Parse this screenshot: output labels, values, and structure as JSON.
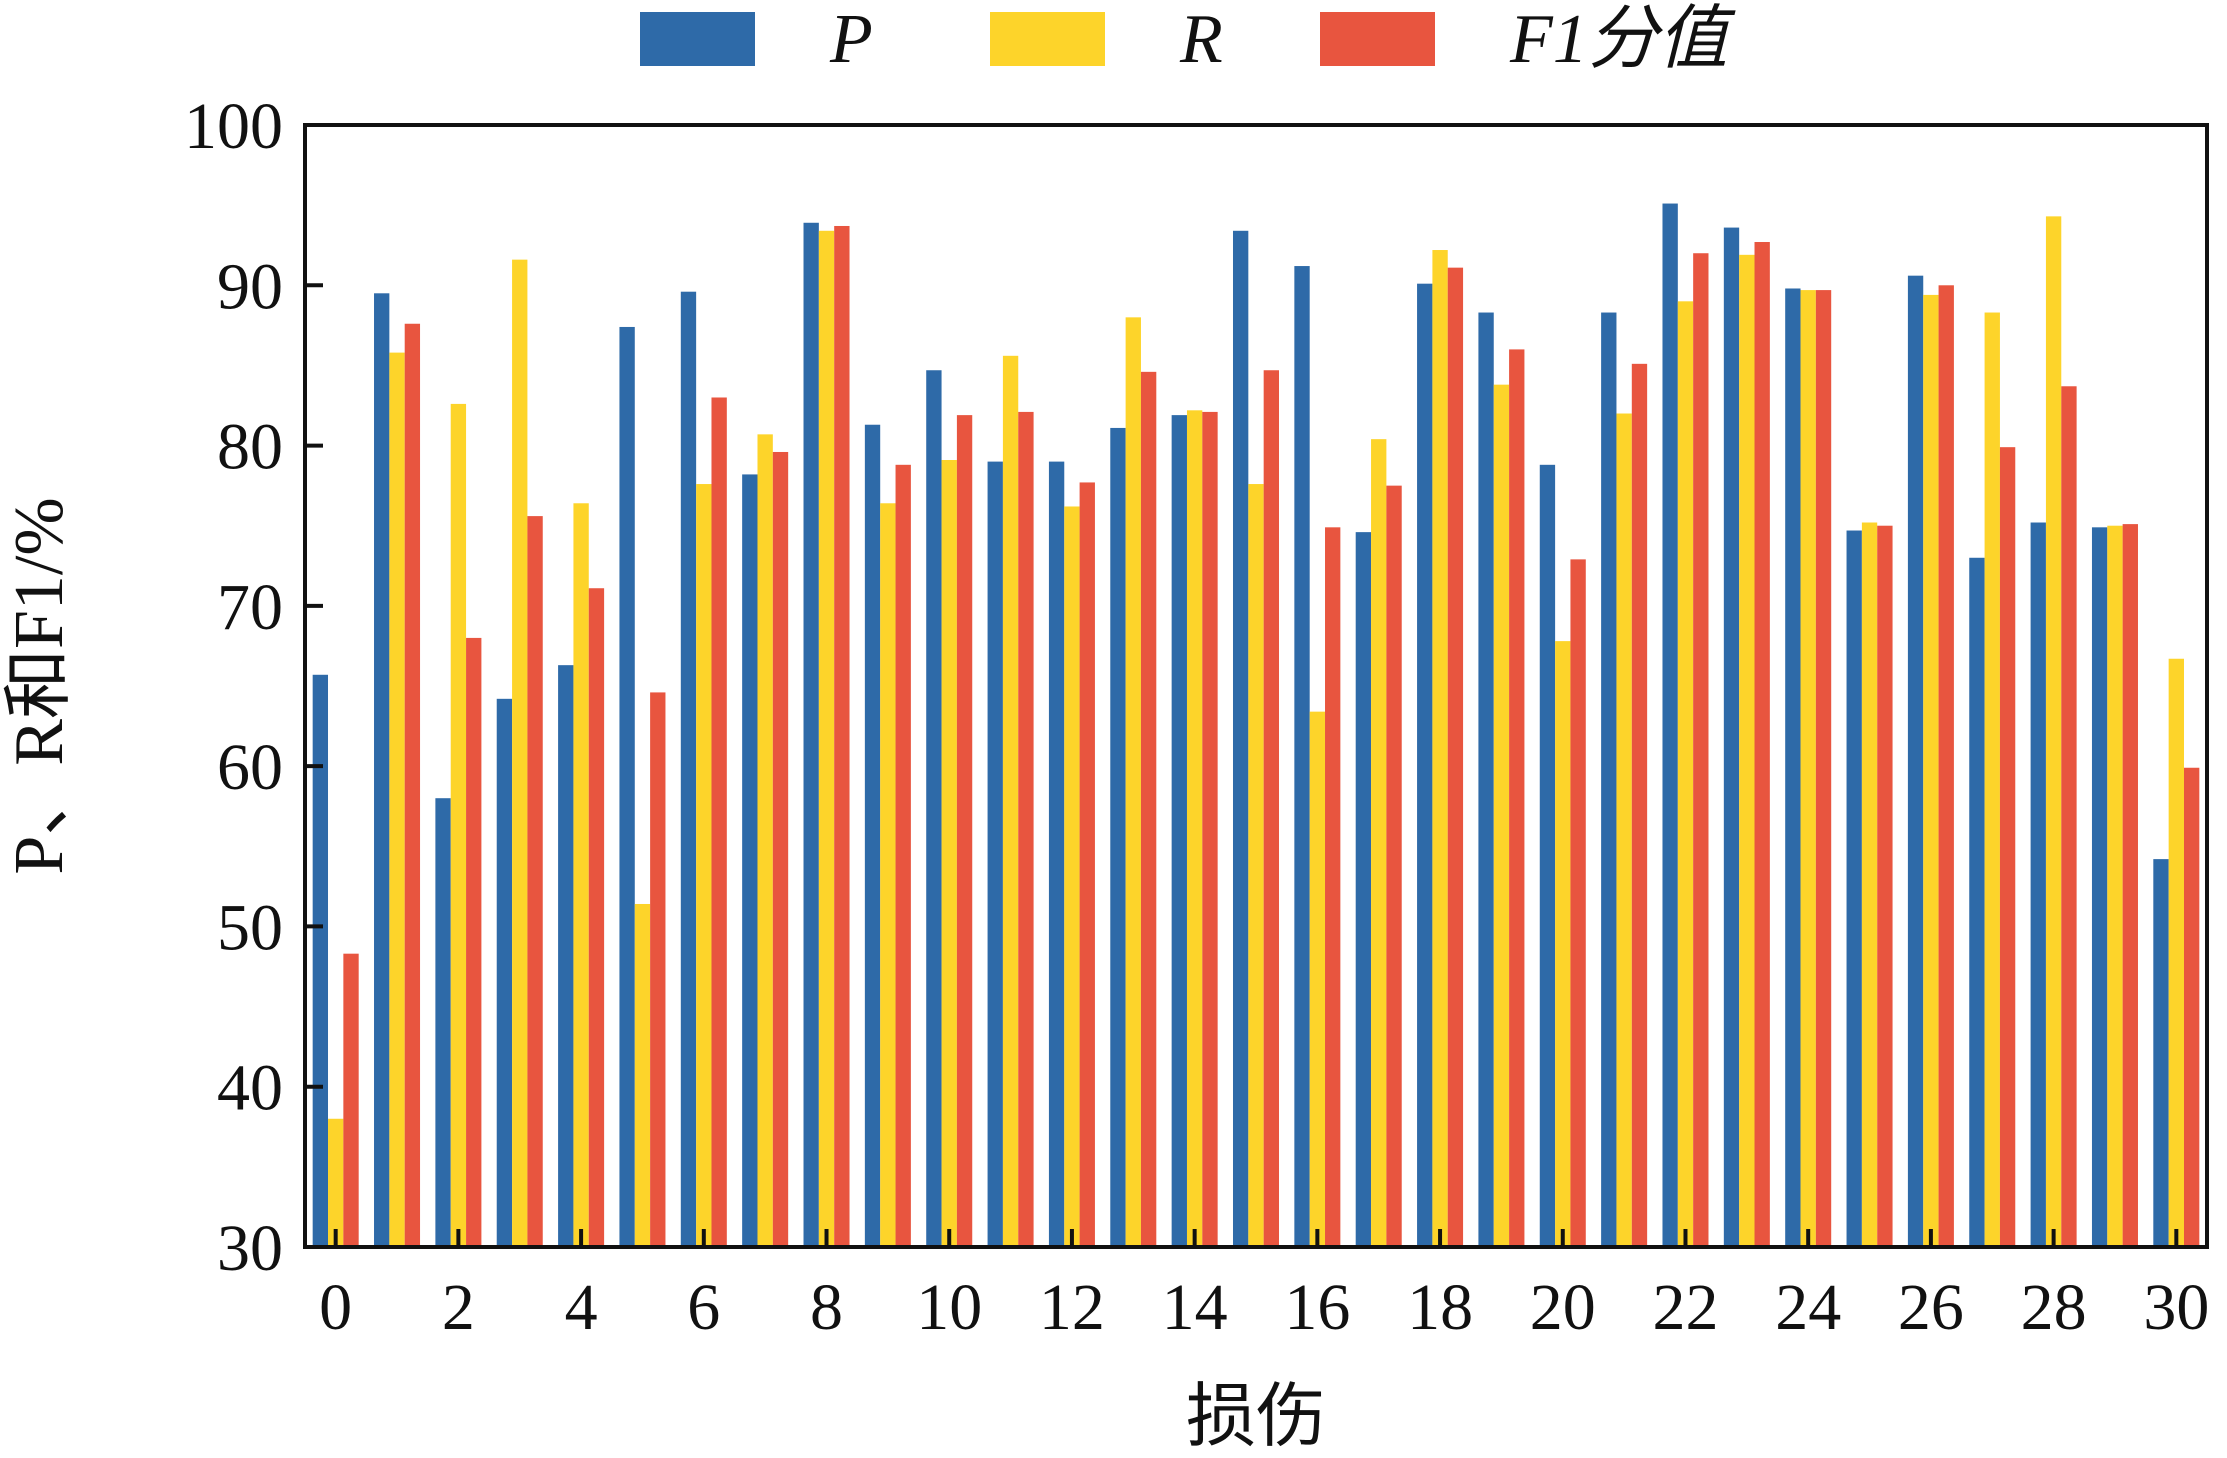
{
  "chart_data": {
    "type": "bar",
    "title": "",
    "xlabel": "损伤",
    "ylabel": "P、R和F1/%",
    "ylim": [
      30,
      100
    ],
    "yticks": [
      30,
      40,
      50,
      60,
      70,
      80,
      90,
      100
    ],
    "xlim": [
      0,
      30
    ],
    "xticks": [
      0,
      2,
      4,
      6,
      8,
      10,
      12,
      14,
      16,
      18,
      20,
      22,
      24,
      26,
      28,
      30
    ],
    "legend_position": "top",
    "grid": false,
    "categories": [
      0,
      1,
      2,
      3,
      4,
      5,
      6,
      7,
      8,
      9,
      10,
      11,
      12,
      13,
      14,
      15,
      16,
      17,
      18,
      19,
      20,
      21,
      22,
      23,
      24,
      25,
      26,
      27,
      28,
      29,
      30
    ],
    "series": [
      {
        "name": "P",
        "color": "#2e6aa8",
        "values": [
          65.7,
          89.5,
          58.0,
          64.2,
          66.3,
          87.4,
          89.6,
          78.2,
          93.9,
          81.3,
          84.7,
          79.0,
          79.0,
          81.1,
          81.9,
          93.4,
          91.2,
          74.6,
          90.1,
          88.3,
          78.8,
          88.3,
          95.1,
          93.6,
          89.8,
          74.7,
          90.6,
          73.0,
          75.2,
          74.9,
          54.2
        ]
      },
      {
        "name": "R",
        "color": "#fdd42a",
        "values": [
          38.0,
          85.8,
          82.6,
          91.6,
          76.4,
          51.4,
          77.6,
          80.7,
          93.4,
          76.4,
          79.1,
          85.6,
          76.2,
          88.0,
          82.2,
          77.6,
          63.4,
          80.4,
          92.2,
          83.8,
          67.8,
          82.0,
          89.0,
          91.9,
          89.7,
          75.2,
          89.4,
          88.3,
          94.3,
          75.0,
          66.7
        ]
      },
      {
        "name": "F1分值",
        "color": "#e8553f",
        "values": [
          48.3,
          87.6,
          68.0,
          75.6,
          71.1,
          64.6,
          83.0,
          79.6,
          93.7,
          78.8,
          81.9,
          82.1,
          77.7,
          84.6,
          82.1,
          84.7,
          74.9,
          77.5,
          91.1,
          86.0,
          72.9,
          85.1,
          92.0,
          92.7,
          89.7,
          75.0,
          90.0,
          79.9,
          83.7,
          75.1,
          59.9
        ]
      }
    ]
  }
}
